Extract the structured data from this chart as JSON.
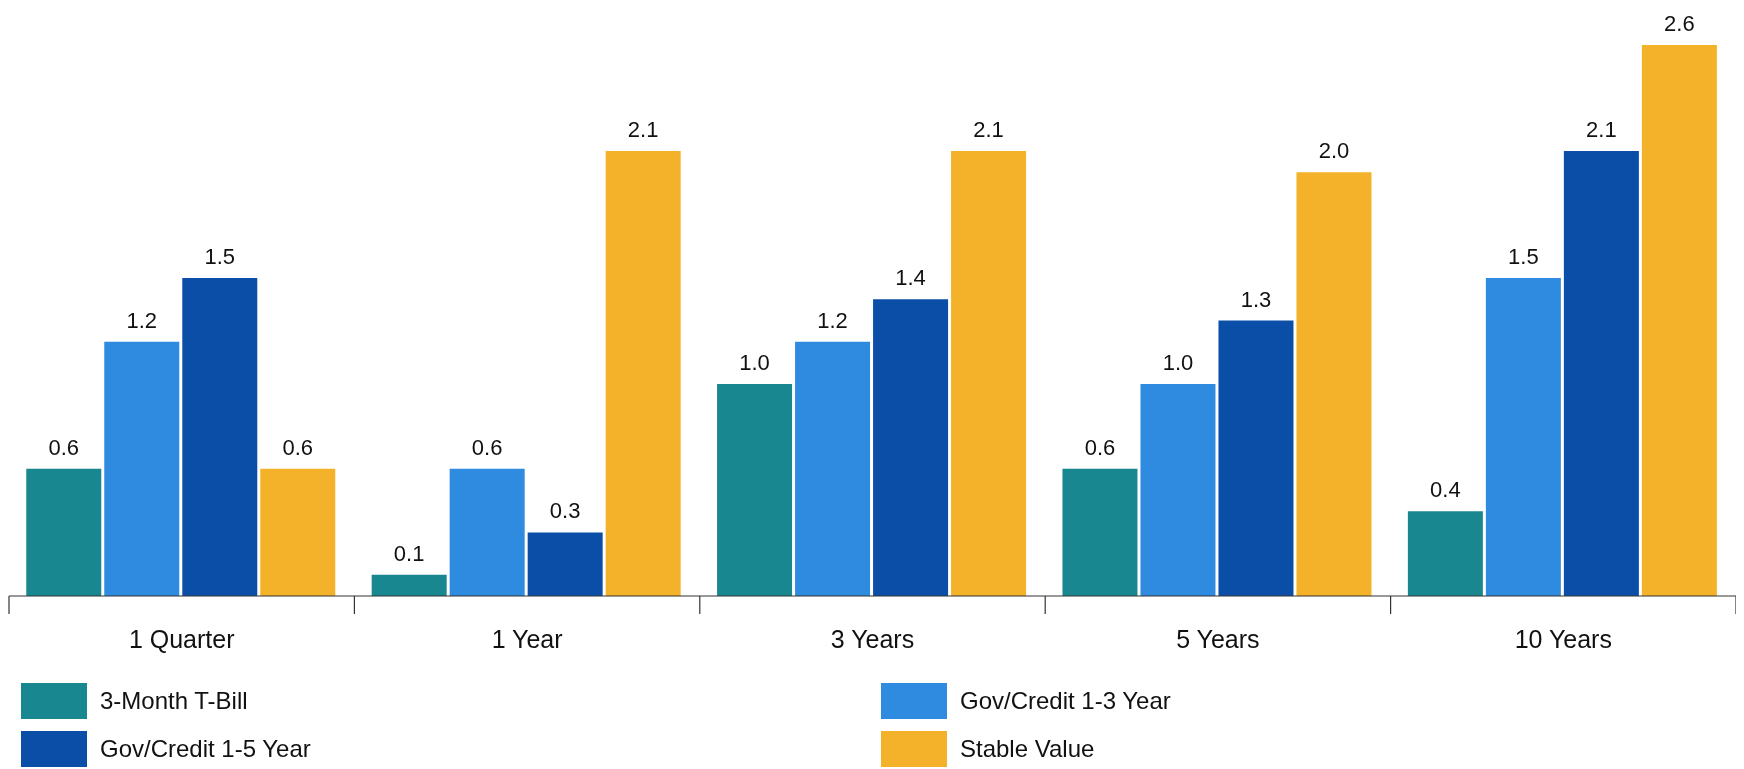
{
  "chart_data": {
    "type": "bar",
    "categories": [
      "1 Quarter",
      "1 Year",
      "3 Years",
      "5 Years",
      "10 Years"
    ],
    "series": [
      {
        "name": "3-Month T-Bill",
        "color": "#18878f",
        "values": [
          0.6,
          0.1,
          1.0,
          0.6,
          0.4
        ],
        "value_labels": [
          "0.6",
          "0.1",
          "1.0",
          "0.6",
          "0.4"
        ]
      },
      {
        "name": "Gov/Credit 1-3 Year",
        "color": "#2f8be0",
        "values": [
          1.2,
          0.6,
          1.2,
          1.0,
          1.5
        ],
        "value_labels": [
          "1.2",
          "0.6",
          "1.2",
          "1.0",
          "1.5"
        ]
      },
      {
        "name": "Gov/Credit 1-5 Year",
        "color": "#0a4ea8",
        "values": [
          1.5,
          0.3,
          1.4,
          1.3,
          2.1
        ],
        "value_labels": [
          "1.5",
          "0.3",
          "1.4",
          "1.3",
          "2.1"
        ]
      },
      {
        "name": "Stable Value",
        "color": "#f3b229",
        "values": [
          0.6,
          2.1,
          2.1,
          2.0,
          2.6
        ],
        "value_labels": [
          "0.6",
          "2.1",
          "2.1",
          "2.0",
          "2.6"
        ]
      }
    ],
    "legend": "bottom"
  }
}
